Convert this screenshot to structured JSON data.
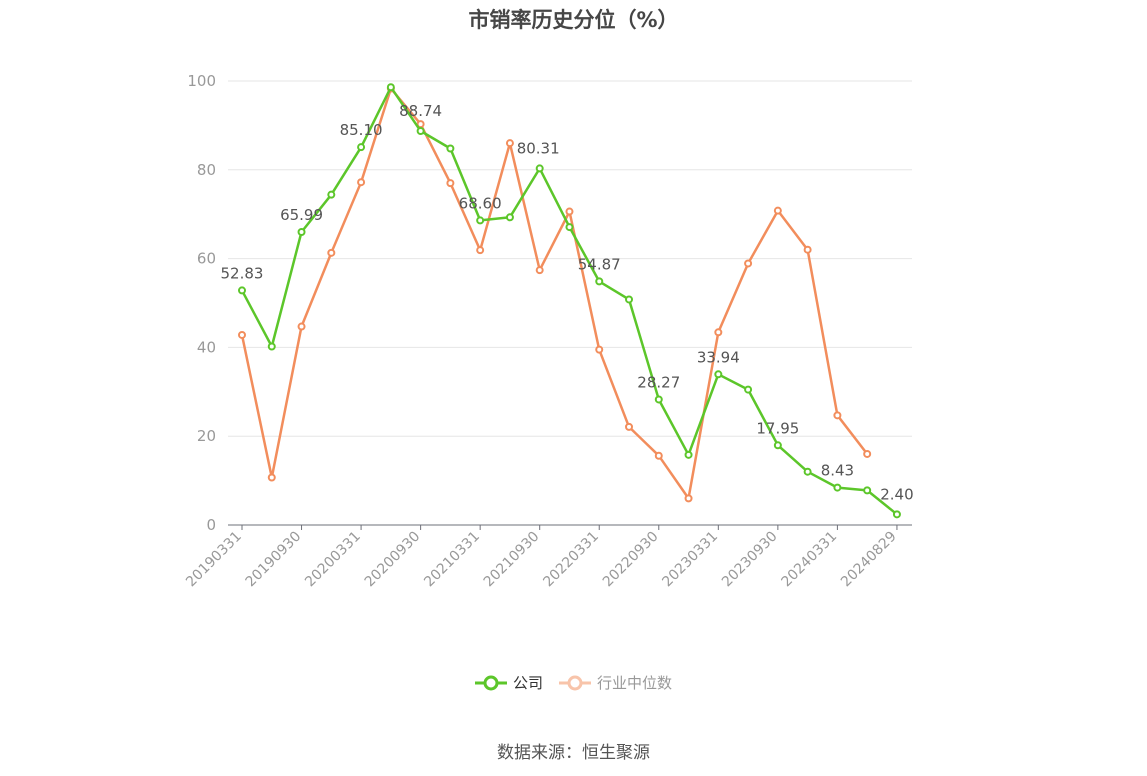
{
  "chart_data": {
    "type": "line",
    "title": "市销率历史分位（%）",
    "ylim": [
      0,
      100
    ],
    "yticks": [
      0,
      20,
      40,
      60,
      80,
      100
    ],
    "x": [
      "20190331",
      "20190630",
      "20190930",
      "20191231",
      "20200331",
      "20200630",
      "20200930",
      "20201231",
      "20210331",
      "20210630",
      "20210930",
      "20211231",
      "20220331",
      "20220630",
      "20220930",
      "20221231",
      "20230331",
      "20230630",
      "20230930",
      "20231231",
      "20240331",
      "20240630",
      "20240829"
    ],
    "xtick_labels": [
      "20190331",
      "20190930",
      "20200331",
      "20200930",
      "20210331",
      "20210930",
      "20220331",
      "20220930",
      "20230331",
      "20230930",
      "20240331",
      "20240829"
    ],
    "grid": true,
    "legend_position": "bottom",
    "series": [
      {
        "name": "公司",
        "color": "#5cc62a",
        "values": [
          52.83,
          40.2,
          65.99,
          74.4,
          85.1,
          98.6,
          88.74,
          84.8,
          68.6,
          69.3,
          80.31,
          67.1,
          54.87,
          50.8,
          28.27,
          15.8,
          33.94,
          30.5,
          17.95,
          12.0,
          8.43,
          7.8,
          2.4
        ],
        "labels": {
          "0": "52.83",
          "2": "65.99",
          "4": "85.10",
          "6": "88.74",
          "8": "68.60",
          "10": "80.31",
          "12": "54.87",
          "14": "28.27",
          "16": "33.94",
          "18": "17.95",
          "20": "8.43",
          "22": "2.40"
        }
      },
      {
        "name": "行业中位数",
        "color": "#f28d5c",
        "values": [
          42.8,
          10.7,
          44.7,
          61.3,
          77.2,
          98.3,
          90.3,
          77.0,
          61.9,
          86.0,
          57.4,
          70.6,
          39.5,
          22.1,
          15.6,
          6.0,
          43.4,
          58.9,
          70.8,
          62.0,
          24.7,
          16.0,
          null
        ]
      }
    ]
  },
  "legend": {
    "company": "公司",
    "industry": "行业中位数"
  },
  "source_text": "数据来源：恒生聚源"
}
